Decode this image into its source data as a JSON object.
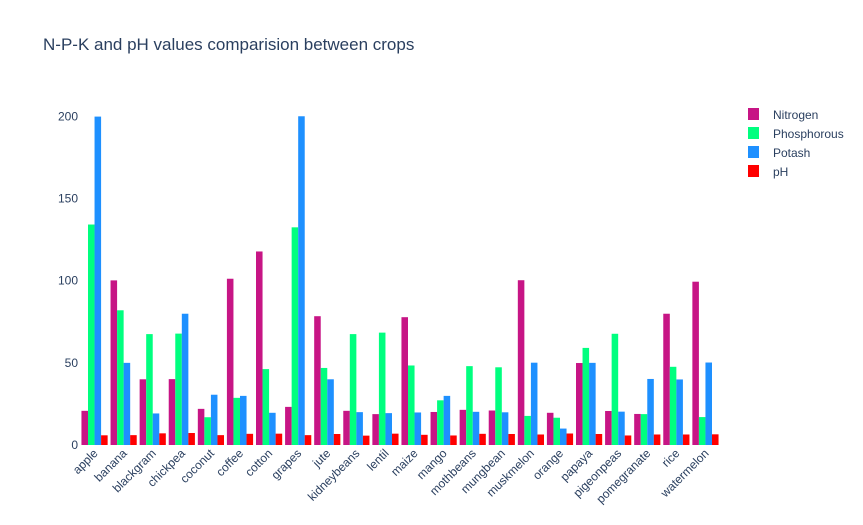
{
  "chart_data": {
    "type": "bar",
    "title": "N-P-K and pH values comparision between crops",
    "xlabel": "",
    "ylabel": "",
    "ylim": [
      0,
      210
    ],
    "yticks": [
      0,
      50,
      100,
      150,
      200
    ],
    "grid": false,
    "legend_position": "top-right",
    "categories": [
      "apple",
      "banana",
      "blackgram",
      "chickpea",
      "coconut",
      "coffee",
      "cotton",
      "grapes",
      "jute",
      "kidneybeans",
      "lentil",
      "maize",
      "mango",
      "mothbeans",
      "mungbean",
      "muskmelon",
      "orange",
      "papaya",
      "pigeonpeas",
      "pomegranate",
      "rice",
      "watermelon"
    ],
    "series": [
      {
        "name": "Nitrogen",
        "color": "#c71585",
        "values": [
          20.8,
          100.2,
          40.0,
          40.1,
          22.0,
          101.2,
          117.8,
          23.2,
          78.4,
          20.8,
          18.8,
          77.8,
          20.1,
          21.4,
          21.0,
          100.3,
          19.6,
          49.9,
          20.7,
          18.9,
          79.9,
          99.4
        ]
      },
      {
        "name": "Phosphorous",
        "color": "#00ff7f",
        "values": [
          134.2,
          82.0,
          67.5,
          67.8,
          16.9,
          28.7,
          46.2,
          132.5,
          46.9,
          67.5,
          68.4,
          48.4,
          27.2,
          48.0,
          47.3,
          17.7,
          16.6,
          59.1,
          67.7,
          18.8,
          47.6,
          17.0
        ]
      },
      {
        "name": "Potash",
        "color": "#1e90ff",
        "values": [
          199.9,
          50.0,
          19.2,
          79.9,
          30.6,
          29.9,
          19.6,
          200.1,
          40.0,
          20.0,
          19.4,
          19.8,
          29.9,
          20.2,
          19.9,
          50.1,
          10.0,
          50.0,
          20.3,
          40.2,
          39.9,
          50.2
        ]
      },
      {
        "name": "pH",
        "color": "#ff0000",
        "values": [
          5.9,
          6.0,
          7.1,
          7.3,
          6.0,
          6.8,
          6.9,
          6.0,
          6.7,
          5.7,
          6.9,
          6.2,
          5.8,
          6.8,
          6.7,
          6.4,
          7.0,
          6.7,
          5.8,
          6.4,
          6.4,
          6.5
        ]
      }
    ]
  }
}
